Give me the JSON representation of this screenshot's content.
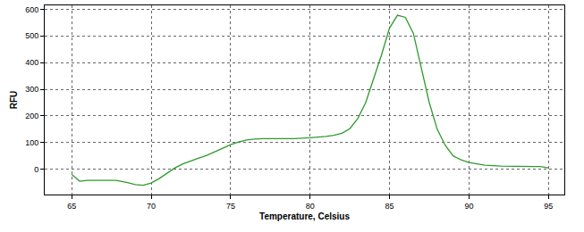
{
  "chart_data": {
    "type": "line",
    "x_label": "Temperature, Celsius",
    "y_label": "RFU",
    "x": [
      65,
      65.5,
      66,
      67,
      67.8,
      68.5,
      69,
      69.5,
      70,
      70.5,
      71,
      71.5,
      72,
      72.5,
      73,
      73.5,
      74,
      74.5,
      75,
      75.5,
      76,
      76.5,
      77,
      78,
      79,
      80,
      80.5,
      81,
      81.5,
      82,
      82.5,
      83,
      83.5,
      84,
      84.5,
      85,
      85.5,
      86,
      86.5,
      87,
      87.5,
      88,
      88.5,
      89,
      89.5,
      90,
      90.5,
      91,
      92,
      93,
      94,
      94.5,
      95
    ],
    "values": [
      -20,
      -45,
      -42,
      -42,
      -42,
      -50,
      -58,
      -60,
      -52,
      -35,
      -15,
      5,
      20,
      32,
      42,
      52,
      65,
      80,
      92,
      102,
      110,
      113,
      115,
      115,
      115,
      118,
      120,
      123,
      127,
      135,
      152,
      190,
      250,
      340,
      430,
      530,
      578,
      570,
      510,
      380,
      250,
      150,
      90,
      50,
      35,
      25,
      20,
      15,
      12,
      10,
      10,
      10,
      5
    ],
    "color": "#2e9a2e",
    "xlim": [
      63.3,
      96
    ],
    "ylim": [
      -95,
      615
    ],
    "xticks": [
      65,
      70,
      75,
      80,
      85,
      90,
      95
    ],
    "yticks": [
      0,
      100,
      200,
      300,
      400,
      500,
      600
    ],
    "grid": true
  }
}
